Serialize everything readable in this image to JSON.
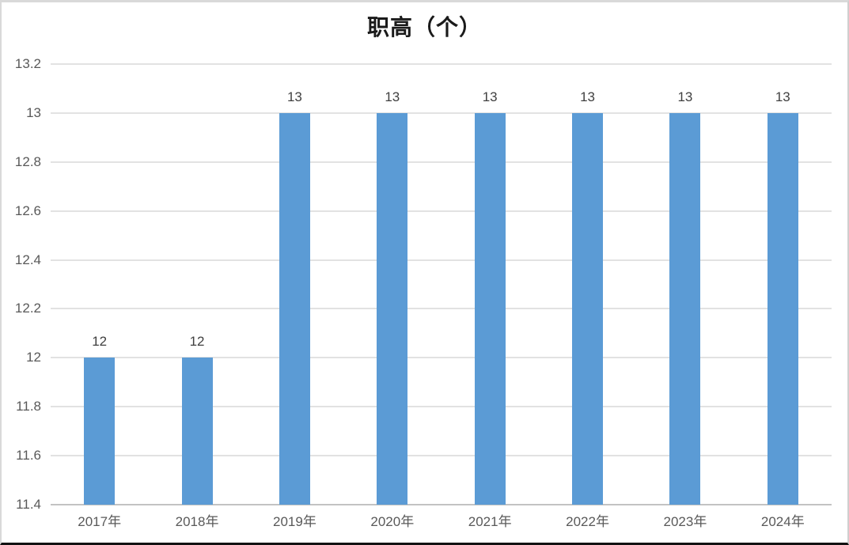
{
  "chart_data": {
    "type": "bar",
    "title": "职高（个）",
    "categories": [
      "2017年",
      "2018年",
      "2019年",
      "2020年",
      "2021年",
      "2022年",
      "2023年",
      "2024年"
    ],
    "values": [
      12,
      12,
      13,
      13,
      13,
      13,
      13,
      13
    ],
    "data_labels": [
      "12",
      "12",
      "13",
      "13",
      "13",
      "13",
      "13",
      "13"
    ],
    "xlabel": "",
    "ylabel": "",
    "ylim": [
      11.4,
      13.2
    ],
    "ytick_step": 0.2,
    "yticks": [
      "11.4",
      "11.6",
      "11.8",
      "12",
      "12.2",
      "12.4",
      "12.6",
      "12.8",
      "13",
      "13.2"
    ],
    "grid": true,
    "legend": "none",
    "bar_color": "#5B9BD5",
    "gridline_color": "#e2e2e2",
    "axis_line_color": "#c3c3c3",
    "tick_label_color": "#595959",
    "data_label_color": "#3f3f3f",
    "title_color": "#1a1a1a"
  }
}
